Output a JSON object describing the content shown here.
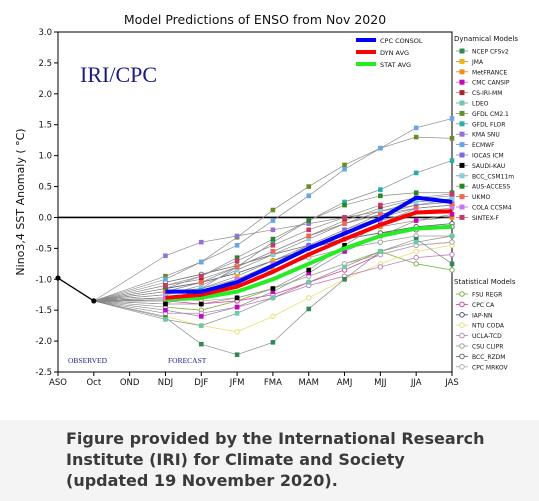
{
  "chart_data": {
    "type": "line",
    "title": "Model Predictions of ENSO from Nov 2020",
    "watermark": "IRI/CPC",
    "ylabel": "Nino3,4 SST Anomaly ( °C)",
    "xlabel": "",
    "x_categories": [
      "ASO",
      "Oct",
      "OND",
      "NDJ",
      "DJF",
      "JFM",
      "FMA",
      "MAM",
      "AMJ",
      "MJJ",
      "JJA",
      "JAS"
    ],
    "y_ticks": [
      "-2.5",
      "-2.0",
      "-1.5",
      "-1.0",
      "-0.5",
      "0.0",
      "0.5",
      "1.0",
      "1.5",
      "2.0",
      "2.5",
      "3.0"
    ],
    "ylim": [
      -2.5,
      3.0
    ],
    "grid": false,
    "region_labels": {
      "observed": "OBSERVED",
      "forecast": "FORECAST"
    },
    "observed": {
      "x": [
        "ASO",
        "Oct"
      ],
      "values": [
        -0.98,
        -1.35
      ]
    },
    "consensus": [
      {
        "name": "CPC CONSOL",
        "color": "#0000ff",
        "values": [
          -1.2,
          -1.2,
          -1.05,
          -0.78,
          -0.5,
          -0.26,
          -0.02,
          0.32,
          0.25
        ]
      },
      {
        "name": "DYN AVG",
        "color": "#ff0000",
        "values": [
          -1.3,
          -1.25,
          -1.12,
          -0.88,
          -0.6,
          -0.35,
          -0.12,
          0.08,
          0.1
        ]
      },
      {
        "name": "STAT AVG",
        "color": "#22ee22",
        "values": [
          -1.33,
          -1.3,
          -1.2,
          -1.0,
          -0.75,
          -0.5,
          -0.3,
          -0.18,
          -0.15
        ]
      }
    ],
    "dynamical_header": "Dynamical Models",
    "dynamical": [
      {
        "name": "NCEP CFSv2",
        "color": "#2e8b57",
        "values": [
          -1.62,
          -2.05,
          -2.22,
          -2.02,
          -1.48,
          -1.0,
          -0.55,
          -0.35,
          -0.75
        ]
      },
      {
        "name": "JMA",
        "color": "#f4b300",
        "values": [
          -1.2,
          -1.15,
          -0.95,
          -0.7,
          -0.45,
          -0.2,
          0.0,
          0.15,
          0.2
        ]
      },
      {
        "name": "MetFRANCE",
        "color": "#ff8c00",
        "values": [
          -1.35,
          -1.3,
          -1.1,
          -0.85,
          -0.6,
          -0.35,
          -0.15,
          -0.05,
          0.0
        ]
      },
      {
        "name": "CMC CANSIP",
        "color": "#cc00cc",
        "values": [
          -1.5,
          -1.6,
          -1.45,
          -1.2,
          -0.9,
          -0.55,
          -0.3,
          -0.05,
          0.05
        ]
      },
      {
        "name": "CS-IRI-MM",
        "color": "#b22222",
        "values": [
          -1.1,
          -1.0,
          -0.8,
          -0.55,
          -0.3,
          -0.05,
          0.15,
          0.3,
          0.35
        ]
      },
      {
        "name": "LDEO",
        "color": "#66cdaa",
        "values": [
          -1.65,
          -1.75,
          -1.55,
          -1.3,
          -1.05,
          -0.8,
          -0.55,
          -0.4,
          -0.3
        ]
      },
      {
        "name": "GFDL CM2.1",
        "color": "#6b8e23",
        "values": [
          -0.95,
          -0.72,
          -0.32,
          0.12,
          0.5,
          0.85,
          1.12,
          1.3,
          1.28
        ]
      },
      {
        "name": "GFDL FLOR",
        "color": "#20b2aa",
        "values": [
          -1.4,
          -1.15,
          -0.8,
          -0.4,
          -0.05,
          0.25,
          0.45,
          0.72,
          0.92
        ]
      },
      {
        "name": "KMA SNU",
        "color": "#9370db",
        "values": [
          -0.62,
          -0.4,
          -0.3,
          -0.2,
          -0.1,
          0.0,
          0.1,
          0.2,
          0.25
        ]
      },
      {
        "name": "ECMWF",
        "color": "#5fa8f0",
        "values": [
          -1.0,
          -0.72,
          -0.45,
          -0.05,
          0.35,
          0.78,
          1.12,
          1.45,
          1.6
        ]
      },
      {
        "name": "IOCAS ICM",
        "color": "#7b68ee",
        "values": [
          -1.3,
          -1.2,
          -1.0,
          -0.75,
          -0.45,
          -0.2,
          0.05,
          0.2,
          0.3
        ]
      },
      {
        "name": "SAUDI-KAU",
        "color": "#000000",
        "values": [
          -1.4,
          -1.4,
          -1.3,
          -1.15,
          -0.85,
          -0.45,
          -0.1,
          0.15,
          0.2
        ]
      },
      {
        "name": "BCC_CSM11m",
        "color": "#87ceeb",
        "values": [
          -1.25,
          -1.1,
          -0.85,
          -0.6,
          -0.35,
          -0.1,
          0.1,
          0.25,
          0.3
        ]
      },
      {
        "name": "AUS-ACCESS",
        "color": "#228b22",
        "values": [
          -1.15,
          -0.95,
          -0.65,
          -0.35,
          -0.05,
          0.2,
          0.35,
          0.4,
          0.4
        ]
      },
      {
        "name": "UKMO",
        "color": "#ff6347",
        "values": [
          -1.2,
          -1.05,
          -0.8,
          -0.55,
          -0.3,
          -0.1,
          0.05,
          0.15,
          0.2
        ]
      },
      {
        "name": "COLA CCSM4",
        "color": "#d070ff",
        "values": [
          -1.3,
          -1.2,
          -1.0,
          -0.75,
          -0.5,
          -0.25,
          -0.05,
          0.1,
          0.15
        ]
      },
      {
        "name": "SINTEX-F",
        "color": "#cc3366",
        "values": [
          -1.1,
          -0.95,
          -0.7,
          -0.45,
          -0.2,
          0.0,
          0.2,
          0.32,
          0.38
        ]
      }
    ],
    "statistical_header": "Statistical Models",
    "statistical": [
      {
        "name": "FSU REGR",
        "color": "#7cb342",
        "values": [
          -1.45,
          -1.5,
          -1.35,
          -1.15,
          -0.95,
          -0.75,
          -0.55,
          -0.75,
          -0.85
        ]
      },
      {
        "name": "CPC CA",
        "color": "#e040a0",
        "values": [
          -1.35,
          -1.4,
          -1.35,
          -1.25,
          -1.05,
          -0.85,
          -0.6,
          -0.45,
          -0.4
        ]
      },
      {
        "name": "IAP-NN",
        "color": "#555577",
        "values": [
          -1.15,
          -1.05,
          -0.9,
          -0.7,
          -0.5,
          -0.35,
          -0.25,
          -0.15,
          -0.1
        ]
      },
      {
        "name": "NTU CODA",
        "color": "#e8e070",
        "values": [
          -1.6,
          -1.75,
          -1.85,
          -1.6,
          -1.3,
          -1.0,
          -0.75,
          -0.55,
          -0.45
        ]
      },
      {
        "name": "UCLA-TCD",
        "color": "#c080c0",
        "values": [
          -1.55,
          -1.55,
          -1.45,
          -1.3,
          -1.1,
          -0.95,
          -0.8,
          -0.65,
          -0.6
        ]
      },
      {
        "name": "CSU CLIPR",
        "color": "#a0a0a0",
        "values": [
          -1.25,
          -1.15,
          -1.0,
          -0.85,
          -0.65,
          -0.5,
          -0.4,
          -0.3,
          -0.3
        ]
      },
      {
        "name": "BCC_RZDM",
        "color": "#707070",
        "values": [
          -1.05,
          -0.92,
          -0.78,
          -0.6,
          -0.45,
          -0.35,
          -0.25,
          -0.2,
          -0.15
        ]
      },
      {
        "name": "CPC MRKOV",
        "color": "#b0b0b0",
        "values": [
          -1.3,
          -1.35,
          -1.3,
          -1.15,
          -0.95,
          -0.75,
          -0.6,
          -0.45,
          -0.4
        ]
      }
    ]
  },
  "caption": {
    "line1": "Figure provided by the International Research",
    "line2": "Institute (IRI) for Climate and Society",
    "line3": "(updated 19 November 2020)."
  }
}
